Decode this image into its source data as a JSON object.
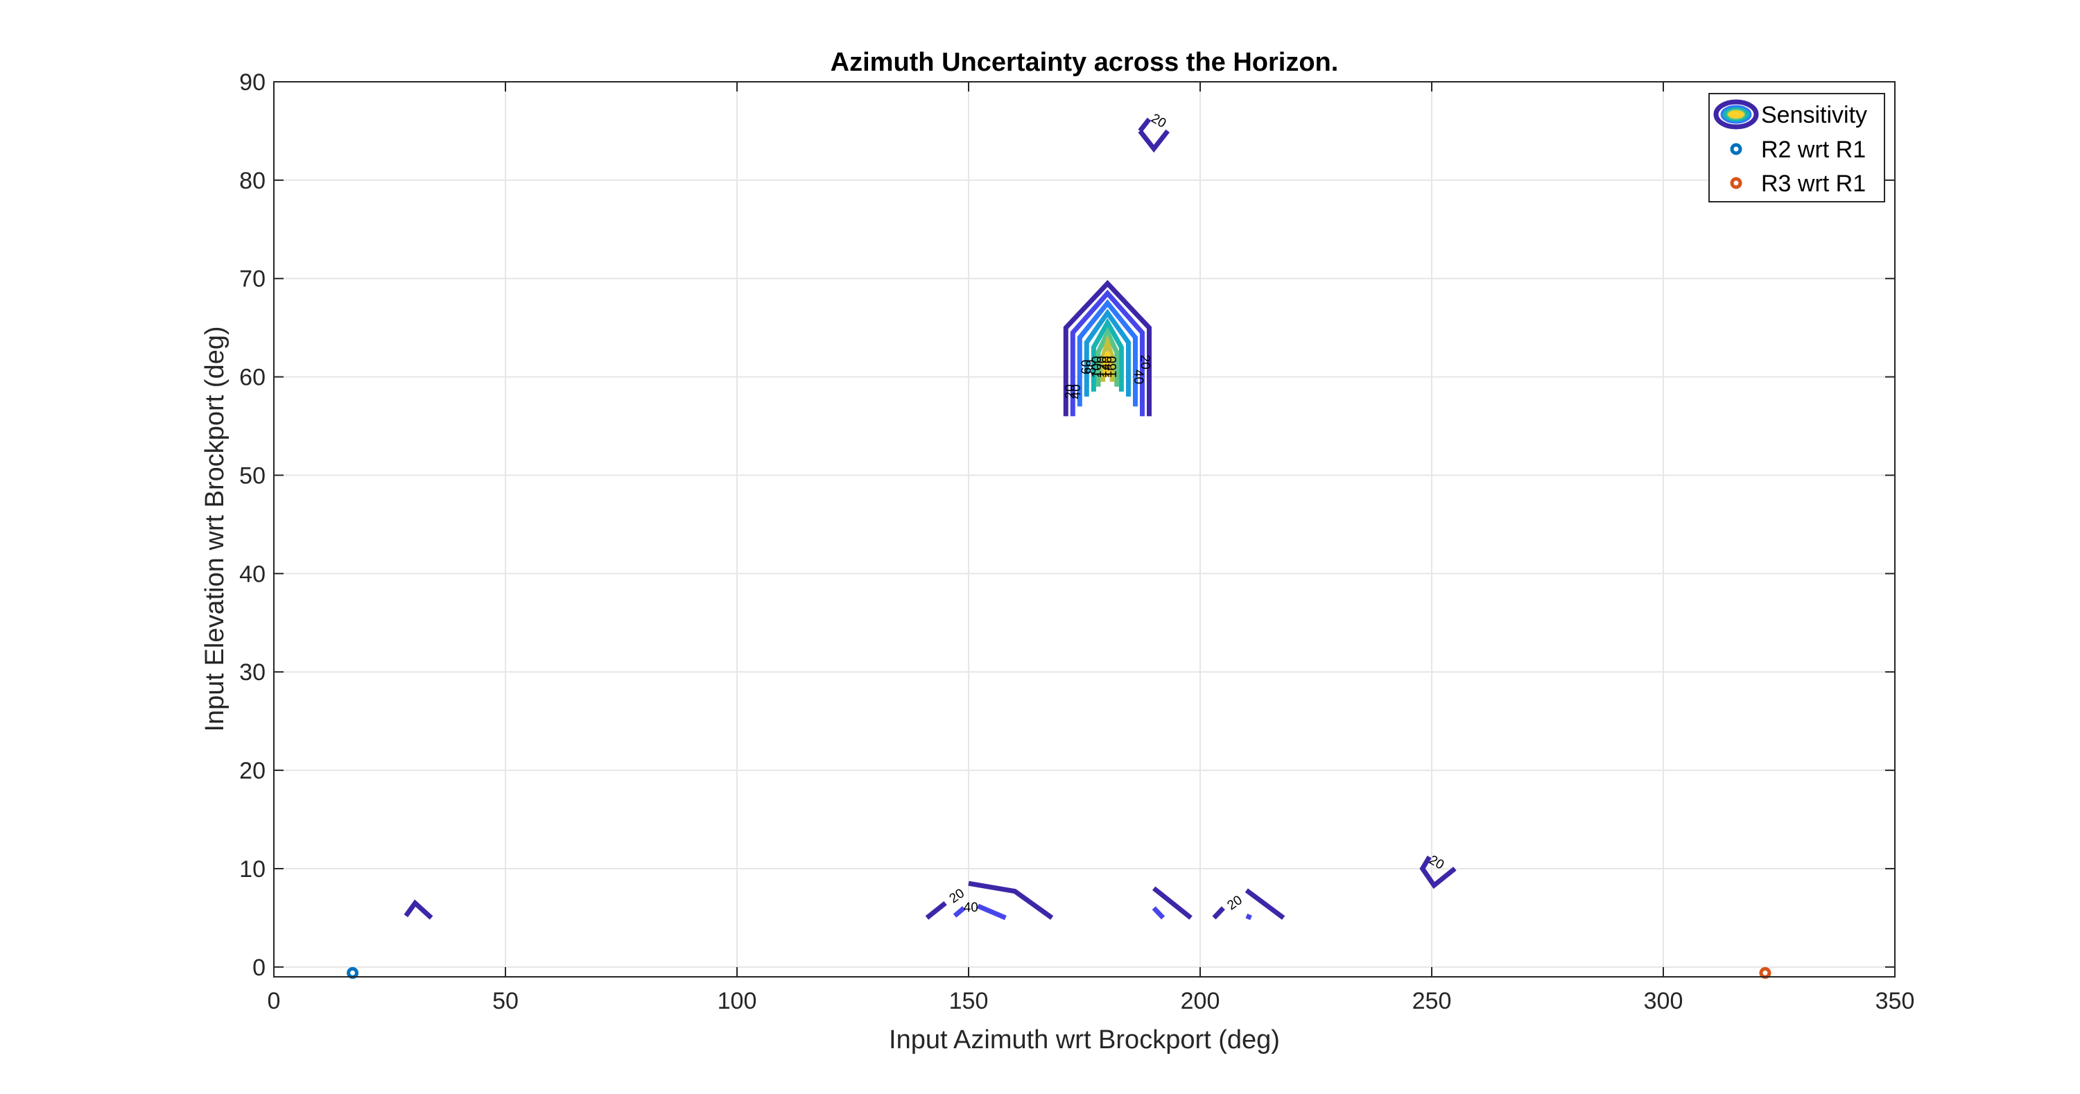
{
  "chart_data": {
    "type": "contour",
    "title": "Azimuth Uncertainty across the Horizon.",
    "xlabel": "Input Azimuth wrt Brockport (deg)",
    "ylabel": "Input Elevation wrt Brockport (deg)",
    "xlim": [
      0,
      350
    ],
    "ylim": [
      -1,
      90
    ],
    "xticks": [
      0,
      50,
      100,
      150,
      200,
      250,
      300,
      350
    ],
    "yticks": [
      0,
      10,
      20,
      30,
      40,
      50,
      60,
      70,
      80,
      90
    ],
    "grid": true,
    "legend_position": "top-right",
    "legend": [
      {
        "name": "Sensitivity",
        "marker": "contour"
      },
      {
        "name": "R2 wrt R1",
        "marker": "circle",
        "color": "#0072BD"
      },
      {
        "name": "R3 wrt R1",
        "marker": "circle",
        "color": "#D95319"
      }
    ],
    "contour_levels": [
      20,
      40,
      60,
      80,
      100,
      120,
      140,
      160
    ],
    "contour_colors": [
      "#3e26a8",
      "#4746eb",
      "#2f78fd",
      "#1a9bd9",
      "#16b4b2",
      "#59c48a",
      "#c2c03f",
      "#f9d12a"
    ],
    "contours": [
      {
        "level": 20,
        "points": [
          [
            171,
            56
          ],
          [
            171,
            65
          ],
          [
            180,
            69.5
          ],
          [
            189,
            65
          ],
          [
            189,
            56
          ]
        ]
      },
      {
        "level": 40,
        "points": [
          [
            172.5,
            56
          ],
          [
            172.5,
            64.5
          ],
          [
            180,
            68.5
          ],
          [
            187.5,
            64.5
          ],
          [
            187.5,
            56
          ]
        ]
      },
      {
        "level": 60,
        "points": [
          [
            174,
            57
          ],
          [
            174,
            64
          ],
          [
            180,
            67.5
          ],
          [
            186,
            64
          ],
          [
            186,
            57
          ]
        ]
      },
      {
        "level": 80,
        "points": [
          [
            175.5,
            58
          ],
          [
            175.5,
            63.5
          ],
          [
            180,
            66.5
          ],
          [
            184.5,
            63.5
          ],
          [
            184.5,
            58
          ]
        ]
      },
      {
        "level": 100,
        "points": [
          [
            177,
            58.5
          ],
          [
            177,
            63
          ],
          [
            180,
            65.5
          ],
          [
            183,
            63
          ],
          [
            183,
            58.5
          ]
        ]
      },
      {
        "level": 120,
        "points": [
          [
            178,
            59
          ],
          [
            178,
            62.5
          ],
          [
            180,
            64.5
          ],
          [
            182,
            62.5
          ],
          [
            182,
            59
          ]
        ]
      },
      {
        "level": 140,
        "points": [
          [
            179,
            59.5
          ],
          [
            179,
            62
          ],
          [
            180,
            63.5
          ],
          [
            181,
            62
          ],
          [
            181,
            59.5
          ]
        ]
      },
      {
        "level": 160,
        "points": [
          [
            179.6,
            60
          ],
          [
            179.6,
            61.5
          ],
          [
            180,
            62.5
          ],
          [
            180.4,
            61.5
          ],
          [
            180.4,
            60
          ]
        ]
      },
      {
        "level": 20,
        "points": [
          [
            187,
            85
          ],
          [
            190,
            83.2
          ],
          [
            193,
            85
          ]
        ]
      },
      {
        "level": 20,
        "points": [
          [
            187,
            85
          ],
          [
            189,
            86.2
          ]
        ]
      },
      {
        "level": 20,
        "points": [
          [
            28.5,
            5.2
          ],
          [
            30.5,
            6.5
          ],
          [
            34,
            5.0
          ]
        ]
      },
      {
        "level": 20,
        "points": [
          [
            141,
            5.0
          ],
          [
            145,
            6.5
          ]
        ]
      },
      {
        "level": 20,
        "points": [
          [
            150,
            8.5
          ],
          [
            160,
            7.7
          ],
          [
            168,
            5.0
          ]
        ]
      },
      {
        "level": 40,
        "points": [
          [
            147,
            5.2
          ],
          [
            149,
            6.0
          ]
        ]
      },
      {
        "level": 40,
        "points": [
          [
            152,
            6.2
          ],
          [
            158,
            5.0
          ]
        ]
      },
      {
        "level": 20,
        "points": [
          [
            190,
            8.0
          ],
          [
            198,
            5.0
          ]
        ]
      },
      {
        "level": 40,
        "points": [
          [
            190,
            6.0
          ],
          [
            192,
            5.0
          ]
        ]
      },
      {
        "level": 20,
        "points": [
          [
            203,
            5.0
          ],
          [
            205,
            6.0
          ]
        ]
      },
      {
        "level": 20,
        "points": [
          [
            210,
            7.8
          ],
          [
            218,
            5.0
          ]
        ]
      },
      {
        "level": 40,
        "points": [
          [
            210,
            5.2
          ],
          [
            211,
            5.0
          ]
        ]
      },
      {
        "level": 20,
        "points": [
          [
            249.5,
            11.2
          ],
          [
            248,
            10
          ],
          [
            250.5,
            8.3
          ],
          [
            255,
            10
          ]
        ]
      }
    ],
    "contour_labels": [
      {
        "text": "20",
        "x": 191,
        "y": 86.0,
        "angle": 30
      },
      {
        "text": "20",
        "x": 172,
        "y": 58.5,
        "angle": -90
      },
      {
        "text": "40",
        "x": 173.3,
        "y": 58.5,
        "angle": -90
      },
      {
        "text": "60",
        "x": 175.5,
        "y": 61,
        "angle": -90
      },
      {
        "text": "80",
        "x": 176.6,
        "y": 61,
        "angle": -90
      },
      {
        "text": "100",
        "x": 177.8,
        "y": 61,
        "angle": -90
      },
      {
        "text": "120",
        "x": 178.9,
        "y": 61,
        "angle": -90
      },
      {
        "text": "140",
        "x": 180,
        "y": 61,
        "angle": -90
      },
      {
        "text": "160",
        "x": 181.1,
        "y": 61,
        "angle": -90
      },
      {
        "text": "20",
        "x": 188,
        "y": 61.5,
        "angle": 90
      },
      {
        "text": "40",
        "x": 186.6,
        "y": 60.0,
        "angle": 90
      },
      {
        "text": "20",
        "x": 147.5,
        "y": 7.2,
        "angle": -35
      },
      {
        "text": "40",
        "x": 150.5,
        "y": 6.0,
        "angle": 0
      },
      {
        "text": "20",
        "x": 207.5,
        "y": 6.5,
        "angle": -35
      },
      {
        "text": "20",
        "x": 251,
        "y": 10.6,
        "angle": 30
      }
    ],
    "series": [
      {
        "name": "R2 wrt R1",
        "x": [
          17
        ],
        "y": [
          -0.6
        ],
        "color": "#0072BD"
      },
      {
        "name": "R3 wrt R1",
        "x": [
          322
        ],
        "y": [
          -0.6
        ],
        "color": "#D95319"
      }
    ]
  }
}
